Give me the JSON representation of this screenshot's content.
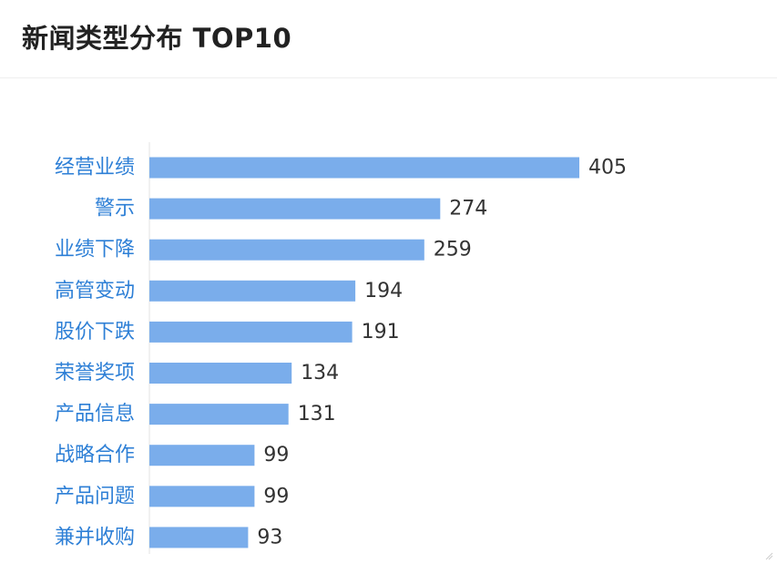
{
  "card": {
    "title": "新闻类型分布 TOP10"
  },
  "colors": {
    "bar": "#7aadeb",
    "category_label": "#2d7fd6",
    "value_label": "#333333",
    "title": "#222222"
  },
  "chart_data": {
    "type": "bar",
    "orientation": "horizontal",
    "categories": [
      "经营业绩",
      "警示",
      "业绩下降",
      "高管变动",
      "股价下跌",
      "荣誉奖项",
      "产品信息",
      "战略合作",
      "产品问题",
      "兼并收购"
    ],
    "values": [
      405,
      274,
      259,
      194,
      191,
      134,
      131,
      99,
      99,
      93
    ],
    "data_labels": [
      "405",
      "274",
      "259",
      "194",
      "191",
      "134",
      "131",
      "99",
      "99",
      "93"
    ],
    "xlim": [
      0,
      405
    ],
    "grid": false,
    "legend": "none"
  }
}
